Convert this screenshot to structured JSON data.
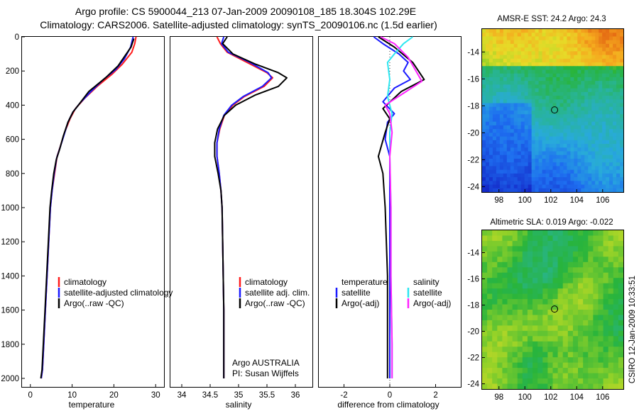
{
  "header": {
    "line1": "Argo profile: CS 5900044_213 07-Jan-2009 20090108_185 18.304S 102.29E",
    "line2": "Climatology: CARS2006. Satellite-adjusted climatology: synTS_20090106.nc (1.5d earlier)"
  },
  "side_label": "CSIRO 12-Jan-2009 10:33:51",
  "colors": {
    "climatology": "#ff1a1a",
    "satellite": "#1a1aff",
    "argo": "#000000",
    "sat_salinity": "#2ce6f0",
    "argo_adj_salinity": "#ff22ff"
  },
  "chart_data": [
    {
      "type": "line",
      "id": "temperature",
      "title": "",
      "xlabel": "temperature",
      "ylabel": "",
      "xlim": [
        -2,
        32
      ],
      "ylim": [
        2050,
        0
      ],
      "x_ticks": [
        "0",
        "10",
        "20",
        "30"
      ],
      "y_ticks": [
        "0",
        "200",
        "400",
        "600",
        "800",
        "1000",
        "1200",
        "1400",
        "1600",
        "1800",
        "2000"
      ],
      "legend": [
        "climatology",
        "satellite-adjusted climatology",
        "Argo(..raw -QC)"
      ],
      "series": [
        {
          "name": "climatology",
          "color": "#ff1a1a",
          "points": [
            [
              25.3,
              0
            ],
            [
              25.0,
              40
            ],
            [
              24.3,
              90
            ],
            [
              22.0,
              160
            ],
            [
              19.5,
              220
            ],
            [
              16.0,
              290
            ],
            [
              13.0,
              360
            ],
            [
              10.8,
              420
            ],
            [
              9.5,
              480
            ],
            [
              8.2,
              560
            ],
            [
              7.2,
              640
            ],
            [
              6.4,
              700
            ],
            [
              5.8,
              800
            ],
            [
              5.2,
              900
            ],
            [
              4.8,
              1000
            ],
            [
              4.4,
              1200
            ],
            [
              4.0,
              1400
            ],
            [
              3.6,
              1600
            ],
            [
              3.2,
              1800
            ],
            [
              2.9,
              1950
            ],
            [
              2.6,
              2000
            ]
          ]
        },
        {
          "name": "satellite-adjusted climatology",
          "color": "#1a1aff",
          "points": [
            [
              24.6,
              0
            ],
            [
              24.0,
              60
            ],
            [
              22.5,
              130
            ],
            [
              20.5,
              190
            ],
            [
              17.5,
              250
            ],
            [
              14.5,
              320
            ],
            [
              11.8,
              390
            ],
            [
              10.2,
              440
            ],
            [
              9.0,
              500
            ],
            [
              8.0,
              580
            ],
            [
              7.1,
              650
            ],
            [
              6.3,
              710
            ],
            [
              5.7,
              800
            ],
            [
              5.2,
              900
            ],
            [
              4.8,
              1000
            ],
            [
              4.4,
              1200
            ],
            [
              4.0,
              1400
            ],
            [
              3.6,
              1600
            ],
            [
              3.2,
              1800
            ],
            [
              2.9,
              1950
            ],
            [
              2.6,
              2000
            ]
          ]
        },
        {
          "name": "Argo(..raw -QC)",
          "color": "#000000",
          "points": [
            [
              24.8,
              10
            ],
            [
              24.1,
              60
            ],
            [
              21.0,
              170
            ],
            [
              18.0,
              240
            ],
            [
              14.0,
              320
            ],
            [
              11.5,
              400
            ],
            [
              10.2,
              440
            ],
            [
              9.0,
              500
            ],
            [
              7.9,
              580
            ],
            [
              7.0,
              660
            ],
            [
              6.2,
              720
            ],
            [
              5.6,
              800
            ],
            [
              5.1,
              900
            ],
            [
              4.7,
              1000
            ],
            [
              4.3,
              1200
            ],
            [
              3.9,
              1400
            ],
            [
              3.5,
              1600
            ],
            [
              3.1,
              1800
            ],
            [
              2.8,
              1950
            ],
            [
              2.5,
              2000
            ]
          ]
        }
      ]
    },
    {
      "type": "line",
      "id": "salinity",
      "title": "",
      "xlabel": "salinity",
      "ylabel": "",
      "xlim": [
        33.8,
        36.3
      ],
      "ylim": [
        2050,
        0
      ],
      "x_ticks": [
        "34",
        "34.5",
        "35",
        "35.5",
        "36"
      ],
      "legend": [
        "climatology",
        "satellite adj. clim.",
        "Argo(..raw -QC)"
      ],
      "annotation": [
        "Argo AUSTRALIA",
        "PI: Susan Wijffels"
      ],
      "series": [
        {
          "name": "climatology",
          "color": "#ff1a1a",
          "points": [
            [
              34.62,
              0
            ],
            [
              34.68,
              40
            ],
            [
              34.8,
              90
            ],
            [
              35.15,
              150
            ],
            [
              35.5,
              210
            ],
            [
              35.6,
              240
            ],
            [
              35.45,
              290
            ],
            [
              35.1,
              350
            ],
            [
              34.9,
              400
            ],
            [
              34.75,
              460
            ],
            [
              34.67,
              540
            ],
            [
              34.62,
              620
            ],
            [
              34.62,
              700
            ],
            [
              34.66,
              800
            ],
            [
              34.69,
              900
            ],
            [
              34.71,
              1000
            ],
            [
              34.72,
              1200
            ],
            [
              34.73,
              1400
            ],
            [
              34.74,
              1600
            ],
            [
              34.74,
              1800
            ],
            [
              34.74,
              2000
            ]
          ]
        },
        {
          "name": "satellite adj. clim.",
          "color": "#1a1aff",
          "points": [
            [
              34.74,
              0
            ],
            [
              34.7,
              40
            ],
            [
              34.82,
              90
            ],
            [
              35.2,
              150
            ],
            [
              35.52,
              210
            ],
            [
              35.58,
              240
            ],
            [
              35.42,
              290
            ],
            [
              35.08,
              350
            ],
            [
              34.88,
              400
            ],
            [
              34.74,
              460
            ],
            [
              34.66,
              540
            ],
            [
              34.62,
              620
            ],
            [
              34.62,
              700
            ],
            [
              34.66,
              800
            ],
            [
              34.69,
              900
            ],
            [
              34.71,
              1000
            ],
            [
              34.72,
              1200
            ],
            [
              34.73,
              1400
            ],
            [
              34.74,
              1600
            ],
            [
              34.74,
              1800
            ],
            [
              34.74,
              2000
            ]
          ]
        },
        {
          "name": "Argo(..raw -QC)",
          "color": "#000000",
          "points": [
            [
              34.8,
              0
            ],
            [
              34.72,
              40
            ],
            [
              34.9,
              100
            ],
            [
              35.3,
              160
            ],
            [
              35.7,
              210
            ],
            [
              35.85,
              240
            ],
            [
              35.7,
              290
            ],
            [
              35.3,
              340
            ],
            [
              34.95,
              400
            ],
            [
              34.75,
              460
            ],
            [
              34.63,
              540
            ],
            [
              34.58,
              620
            ],
            [
              34.58,
              700
            ],
            [
              34.64,
              800
            ],
            [
              34.69,
              900
            ],
            [
              34.71,
              1000
            ],
            [
              34.72,
              1200
            ],
            [
              34.73,
              1400
            ],
            [
              34.74,
              1600
            ],
            [
              34.74,
              1800
            ],
            [
              34.74,
              2000
            ]
          ]
        }
      ]
    },
    {
      "type": "line",
      "id": "difference",
      "title": "",
      "xlabel": "difference from climatology",
      "ylabel": "",
      "xlim": [
        -3.1,
        3.1
      ],
      "ylim": [
        2050,
        0
      ],
      "x_ticks": [
        "-2",
        "0",
        "2"
      ],
      "legend_temperature": [
        "temperature",
        "satellite",
        "Argo(-adj)"
      ],
      "legend_salinity": [
        "salinity",
        "satellite",
        "Argo(-adj)"
      ],
      "series": [
        {
          "name": "temperature satellite",
          "color": "#1a1aff",
          "points": [
            [
              -0.7,
              0
            ],
            [
              -0.3,
              40
            ],
            [
              0.4,
              100
            ],
            [
              0.8,
              150
            ],
            [
              0.6,
              200
            ],
            [
              0.9,
              250
            ],
            [
              0.2,
              300
            ],
            [
              -0.3,
              380
            ],
            [
              0.2,
              450
            ],
            [
              -0.1,
              500
            ],
            [
              -0.2,
              600
            ],
            [
              0.0,
              700
            ],
            [
              0.0,
              800
            ],
            [
              0.0,
              1000
            ],
            [
              0.0,
              1400
            ],
            [
              0.0,
              1800
            ],
            [
              0.0,
              2000
            ]
          ]
        },
        {
          "name": "temperature Argo(-adj)",
          "color": "#000000",
          "points": [
            [
              -0.5,
              0
            ],
            [
              0.2,
              60
            ],
            [
              1.0,
              150
            ],
            [
              1.5,
              250
            ],
            [
              0.5,
              320
            ],
            [
              -0.3,
              420
            ],
            [
              0.0,
              480
            ],
            [
              -0.2,
              560
            ],
            [
              -0.5,
              700
            ],
            [
              -0.3,
              800
            ],
            [
              -0.2,
              1000
            ],
            [
              -0.1,
              1400
            ],
            [
              -0.1,
              1800
            ],
            [
              -0.1,
              2000
            ]
          ]
        },
        {
          "name": "salinity satellite",
          "color": "#2ce6f0",
          "points": [
            [
              1.0,
              0
            ],
            [
              0.6,
              40
            ],
            [
              0.2,
              100
            ],
            [
              -0.1,
              150
            ],
            [
              0.0,
              250
            ],
            [
              -0.1,
              350
            ],
            [
              0.1,
              450
            ],
            [
              0.0,
              560
            ],
            [
              0.0,
              700
            ],
            [
              0.05,
              1000
            ],
            [
              0.05,
              1400
            ],
            [
              0.1,
              1800
            ],
            [
              0.1,
              2000
            ]
          ]
        },
        {
          "name": "salinity Argo(-adj)",
          "color": "#ff22ff",
          "points": [
            [
              -0.4,
              0
            ],
            [
              0.2,
              40
            ],
            [
              0.8,
              120
            ],
            [
              1.4,
              260
            ],
            [
              0.6,
              330
            ],
            [
              -0.2,
              400
            ],
            [
              0.0,
              450
            ],
            [
              0.1,
              560
            ],
            [
              0.0,
              700
            ],
            [
              0.05,
              1000
            ],
            [
              0.05,
              1400
            ],
            [
              0.1,
              1800
            ],
            [
              0.1,
              2000
            ]
          ]
        }
      ]
    },
    {
      "type": "heatmap",
      "id": "sst",
      "title": "AMSR-E SST: 24.2  Argo: 24.3",
      "xlim": [
        96.7,
        107.6
      ],
      "ylim": [
        -24.4,
        -12.3
      ],
      "x_ticks": [
        "98",
        "100",
        "102",
        "104",
        "106"
      ],
      "y_ticks": [
        "-14",
        "-16",
        "-18",
        "-20",
        "-22",
        "-24"
      ],
      "marker": {
        "lon": 102.29,
        "lat": -18.304
      }
    },
    {
      "type": "heatmap",
      "id": "sla",
      "title": "Altimetric SLA: 0.019  Argo: -0.022",
      "xlim": [
        96.7,
        107.6
      ],
      "ylim": [
        -24.4,
        -12.3
      ],
      "x_ticks": [
        "98",
        "100",
        "102",
        "104",
        "106"
      ],
      "y_ticks": [
        "-14",
        "-16",
        "-18",
        "-20",
        "-22",
        "-24"
      ],
      "marker": {
        "lon": 102.29,
        "lat": -18.304
      }
    }
  ]
}
